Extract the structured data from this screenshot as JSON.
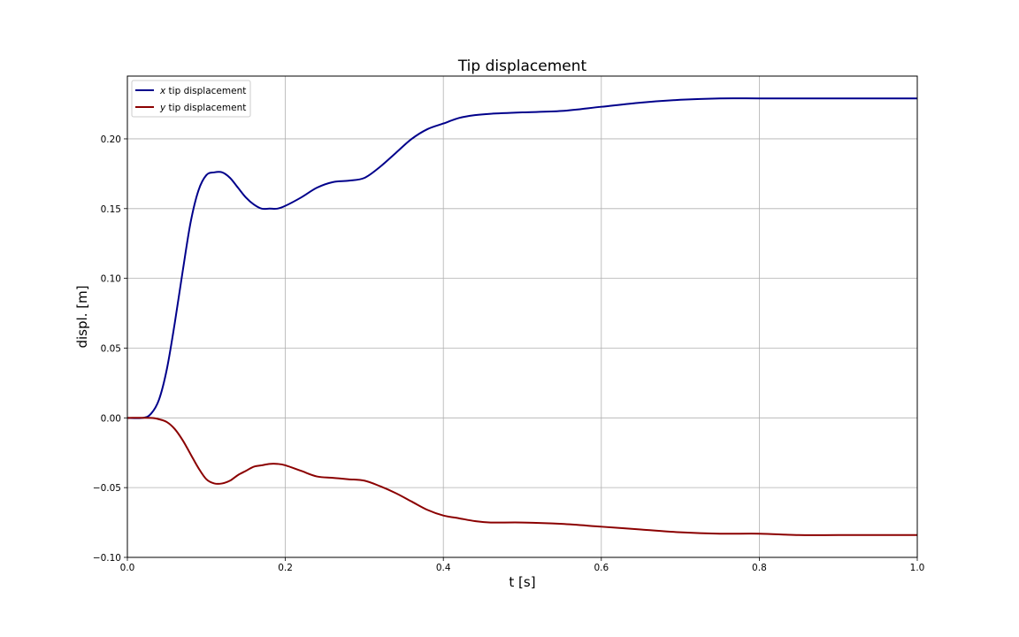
{
  "chart_data": {
    "type": "line",
    "title": "Tip displacement",
    "xlabel": "t [s]",
    "ylabel": "displ. [m]",
    "xlim": [
      0.0,
      1.0
    ],
    "ylim": [
      -0.1,
      0.245
    ],
    "xticks": [
      0.0,
      0.2,
      0.4,
      0.6,
      0.8,
      1.0
    ],
    "xtick_labels": [
      "0.0",
      "0.2",
      "0.4",
      "0.6",
      "0.8",
      "1.0"
    ],
    "yticks": [
      -0.1,
      -0.05,
      0.0,
      0.05,
      0.1,
      0.15,
      0.2
    ],
    "ytick_labels": [
      "−0.10",
      "−0.05",
      "0.00",
      "0.05",
      "0.10",
      "0.15",
      "0.20"
    ],
    "grid": true,
    "legend_position": "top-left",
    "series": [
      {
        "name_italic": "x",
        "name_rest": " tip displacement",
        "color": "#00008b",
        "x": [
          0.0,
          0.02,
          0.03,
          0.04,
          0.05,
          0.06,
          0.07,
          0.08,
          0.09,
          0.1,
          0.11,
          0.12,
          0.13,
          0.14,
          0.15,
          0.16,
          0.17,
          0.18,
          0.19,
          0.2,
          0.22,
          0.24,
          0.26,
          0.28,
          0.3,
          0.32,
          0.34,
          0.36,
          0.38,
          0.4,
          0.42,
          0.44,
          0.46,
          0.5,
          0.55,
          0.6,
          0.65,
          0.7,
          0.75,
          0.8,
          0.85,
          0.9,
          0.95,
          1.0
        ],
        "y": [
          0.0,
          0.0,
          0.003,
          0.013,
          0.035,
          0.068,
          0.105,
          0.14,
          0.163,
          0.174,
          0.176,
          0.176,
          0.172,
          0.165,
          0.158,
          0.153,
          0.15,
          0.15,
          0.15,
          0.152,
          0.158,
          0.165,
          0.169,
          0.17,
          0.172,
          0.18,
          0.19,
          0.2,
          0.207,
          0.211,
          0.215,
          0.217,
          0.218,
          0.219,
          0.22,
          0.223,
          0.226,
          0.228,
          0.229,
          0.229,
          0.229,
          0.229,
          0.229,
          0.229
        ]
      },
      {
        "name_italic": "y",
        "name_rest": " tip displacement",
        "color": "#8b0000",
        "x": [
          0.0,
          0.03,
          0.04,
          0.05,
          0.06,
          0.07,
          0.08,
          0.09,
          0.1,
          0.11,
          0.12,
          0.13,
          0.14,
          0.15,
          0.16,
          0.17,
          0.18,
          0.19,
          0.2,
          0.22,
          0.24,
          0.26,
          0.28,
          0.3,
          0.32,
          0.34,
          0.36,
          0.38,
          0.4,
          0.42,
          0.44,
          0.46,
          0.5,
          0.55,
          0.6,
          0.65,
          0.7,
          0.75,
          0.8,
          0.85,
          0.9,
          0.95,
          1.0
        ],
        "y": [
          0.0,
          0.0,
          -0.001,
          -0.003,
          -0.008,
          -0.016,
          -0.026,
          -0.036,
          -0.044,
          -0.047,
          -0.047,
          -0.045,
          -0.041,
          -0.038,
          -0.035,
          -0.034,
          -0.033,
          -0.033,
          -0.034,
          -0.038,
          -0.042,
          -0.043,
          -0.044,
          -0.045,
          -0.049,
          -0.054,
          -0.06,
          -0.066,
          -0.07,
          -0.072,
          -0.074,
          -0.075,
          -0.075,
          -0.076,
          -0.078,
          -0.08,
          -0.082,
          -0.083,
          -0.083,
          -0.084,
          -0.084,
          -0.084,
          -0.084
        ]
      }
    ]
  }
}
